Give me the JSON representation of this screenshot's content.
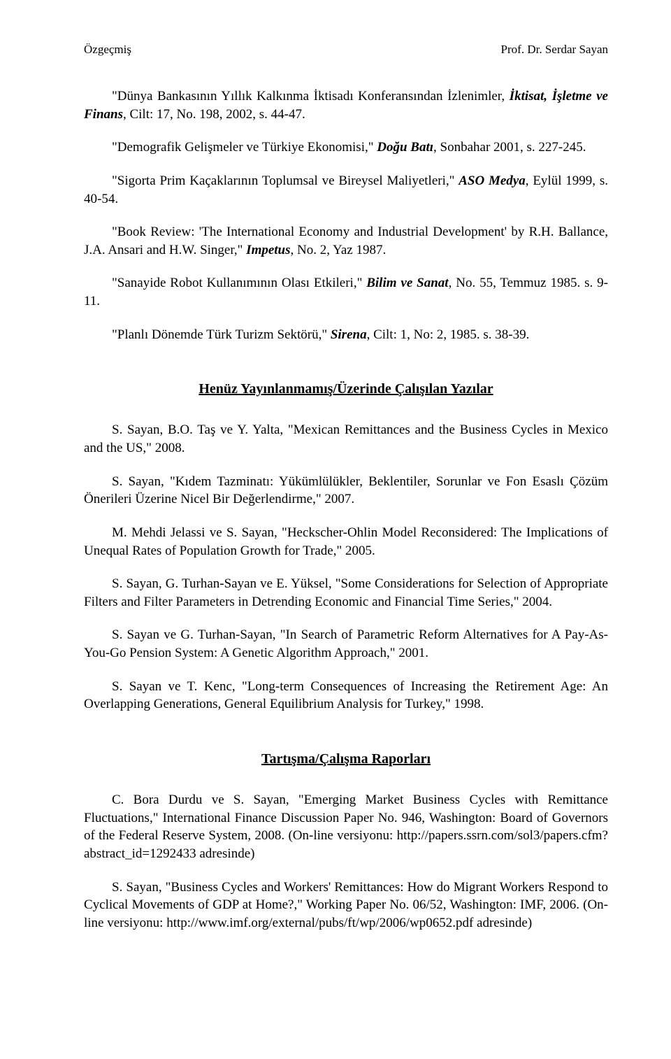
{
  "header": {
    "left": "Özgeçmiş",
    "right": "Prof. Dr. Serdar Sayan"
  },
  "paragraphs": [
    [
      {
        "t": "\"Dünya Bankasının Yıllık Kalkınma İktisadı Konferansından İzlenimler,"
      },
      {
        "t": " İktisat, İşletme ve Finans",
        "s": "bolditalic"
      },
      {
        "t": ", Cilt: 17, No. 198, 2002, s. 44-47."
      }
    ],
    [
      {
        "t": "\"Demografik Gelişmeler ve Türkiye Ekonomisi,\" "
      },
      {
        "t": "Doğu Batı",
        "s": "bolditalic"
      },
      {
        "t": ", Sonbahar 2001, s. 227-245."
      }
    ],
    [
      {
        "t": "\"Sigorta Prim Kaçaklarının Toplumsal ve Bireysel Maliyetleri,\" "
      },
      {
        "t": "ASO Medya",
        "s": "bolditalic"
      },
      {
        "t": ", Eylül 1999, s. 40-54."
      }
    ],
    [
      {
        "t": "\"Book Review: 'The International Economy and Industrial Development' by R.H. Ballance, J.A. Ansari and H.W. Singer,\" "
      },
      {
        "t": "Impetus",
        "s": "bolditalic"
      },
      {
        "t": ", No. 2, Yaz 1987."
      }
    ],
    [
      {
        "t": "\"Sanayide Robot Kullanımının Olası Etkileri,\" "
      },
      {
        "t": "Bilim ve Sanat",
        "s": "bolditalic"
      },
      {
        "t": ", No. 55, Temmuz 1985. s. 9-11."
      }
    ],
    [
      {
        "t": "\"Planlı Dönemde Türk Turizm Sektörü,\" "
      },
      {
        "t": "Sirena",
        "s": "bolditalic"
      },
      {
        "t": ", Cilt: 1, No: 2, 1985. s. 38-39."
      }
    ]
  ],
  "section1": "Henüz Yayınlanmamış/Üzerinde Çalışılan Yazılar",
  "sec1_paragraphs": [
    [
      {
        "t": "S. Sayan, B.O. Taş ve Y. Yalta, \"Mexican Remittances and the Business Cycles in Mexico and the US,\" 2008."
      }
    ],
    [
      {
        "t": "S. Sayan, \"Kıdem Tazminatı: Yükümlülükler, Beklentiler, Sorunlar ve Fon Esaslı Çözüm Önerileri Üzerine Nicel Bir Değerlendirme,\" 2007."
      }
    ],
    [
      {
        "t": "M. Mehdi Jelassi ve S. Sayan, \"Heckscher-Ohlin Model Reconsidered: The Implications of Unequal Rates of Population Growth for Trade,\" 2005."
      }
    ],
    [
      {
        "t": "S. Sayan, G. Turhan-Sayan ve E. Yüksel, \"Some Considerations for Selection of Appropriate Filters and Filter Parameters in Detrending Economic and Financial Time Series,\" 2004."
      }
    ],
    [
      {
        "t": "S. Sayan ve G. Turhan-Sayan, \"In Search of Parametric Reform Alternatives for A Pay-As- You-Go Pension System: A Genetic Algorithm Approach,\" 2001."
      }
    ],
    [
      {
        "t": "S. Sayan ve T. Kenc, \"Long-term Consequences of Increasing the Retirement Age: An Overlapping Generations, General Equilibrium Analysis for Turkey,\" 1998."
      }
    ]
  ],
  "section2": "Tartışma/Çalışma Raporları",
  "sec2_paragraphs": [
    [
      {
        "t": "C. Bora Durdu ve S. Sayan, \"Emerging Market Business Cycles with Remittance Fluctuations,\" International Finance Discussion Paper No. 946, Washington: Board of Governors of the Federal Reserve System, 2008. (On-line versiyonu: http://papers.ssrn.com/sol3/papers.cfm?abstract_id=1292433 adresinde)"
      }
    ],
    [
      {
        "t": "S. Sayan, \"Business Cycles and Workers' Remittances: How do Migrant Workers Respond to Cyclical Movements of GDP at Home?,\" Working Paper No. 06/52, Washington: IMF, 2006. (On-line versiyonu: http://www.imf.org/external/pubs/ft/wp/2006/wp0652.pdf adresinde)"
      }
    ]
  ]
}
